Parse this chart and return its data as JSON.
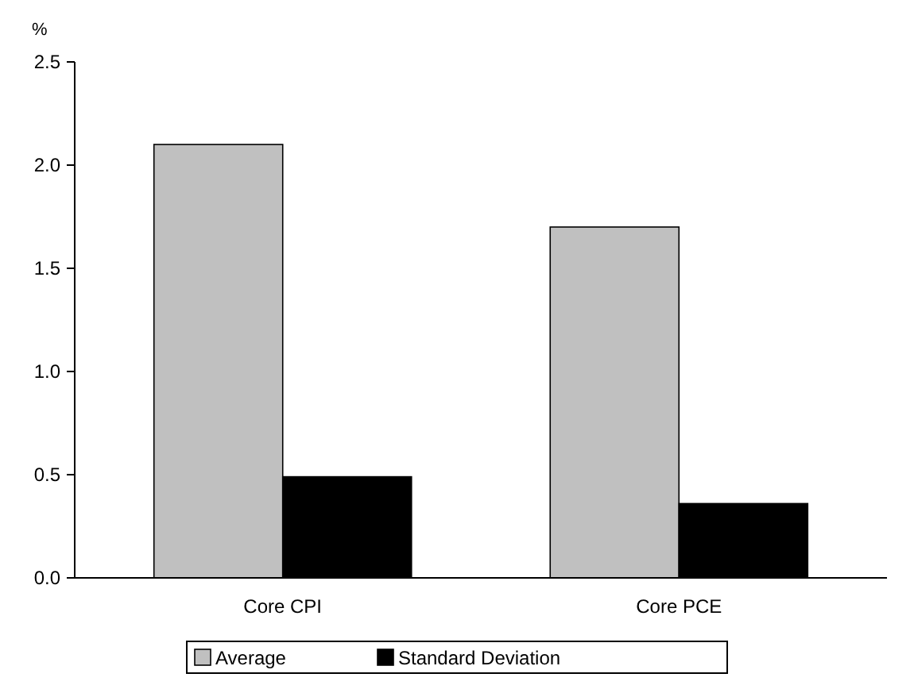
{
  "chart_data": {
    "type": "bar",
    "ylabel": "%",
    "categories": [
      "Core CPI",
      "Core PCE"
    ],
    "series": [
      {
        "name": "Average",
        "color": "#c0c0c0",
        "values": [
          2.1,
          1.7
        ]
      },
      {
        "name": "Standard Deviation",
        "color": "#000000",
        "values": [
          0.49,
          0.36
        ]
      }
    ],
    "ylim": [
      0,
      2.5
    ],
    "yticks": [
      {
        "value": 0,
        "label": "0.0"
      },
      {
        "value": 0.5,
        "label": "0.5"
      },
      {
        "value": 1,
        "label": "1.0"
      },
      {
        "value": 1.5,
        "label": "1.5"
      },
      {
        "value": 2,
        "label": "2.0"
      },
      {
        "value": 2.5,
        "label": "2.5"
      }
    ],
    "grid": false,
    "legend": "bottom"
  }
}
